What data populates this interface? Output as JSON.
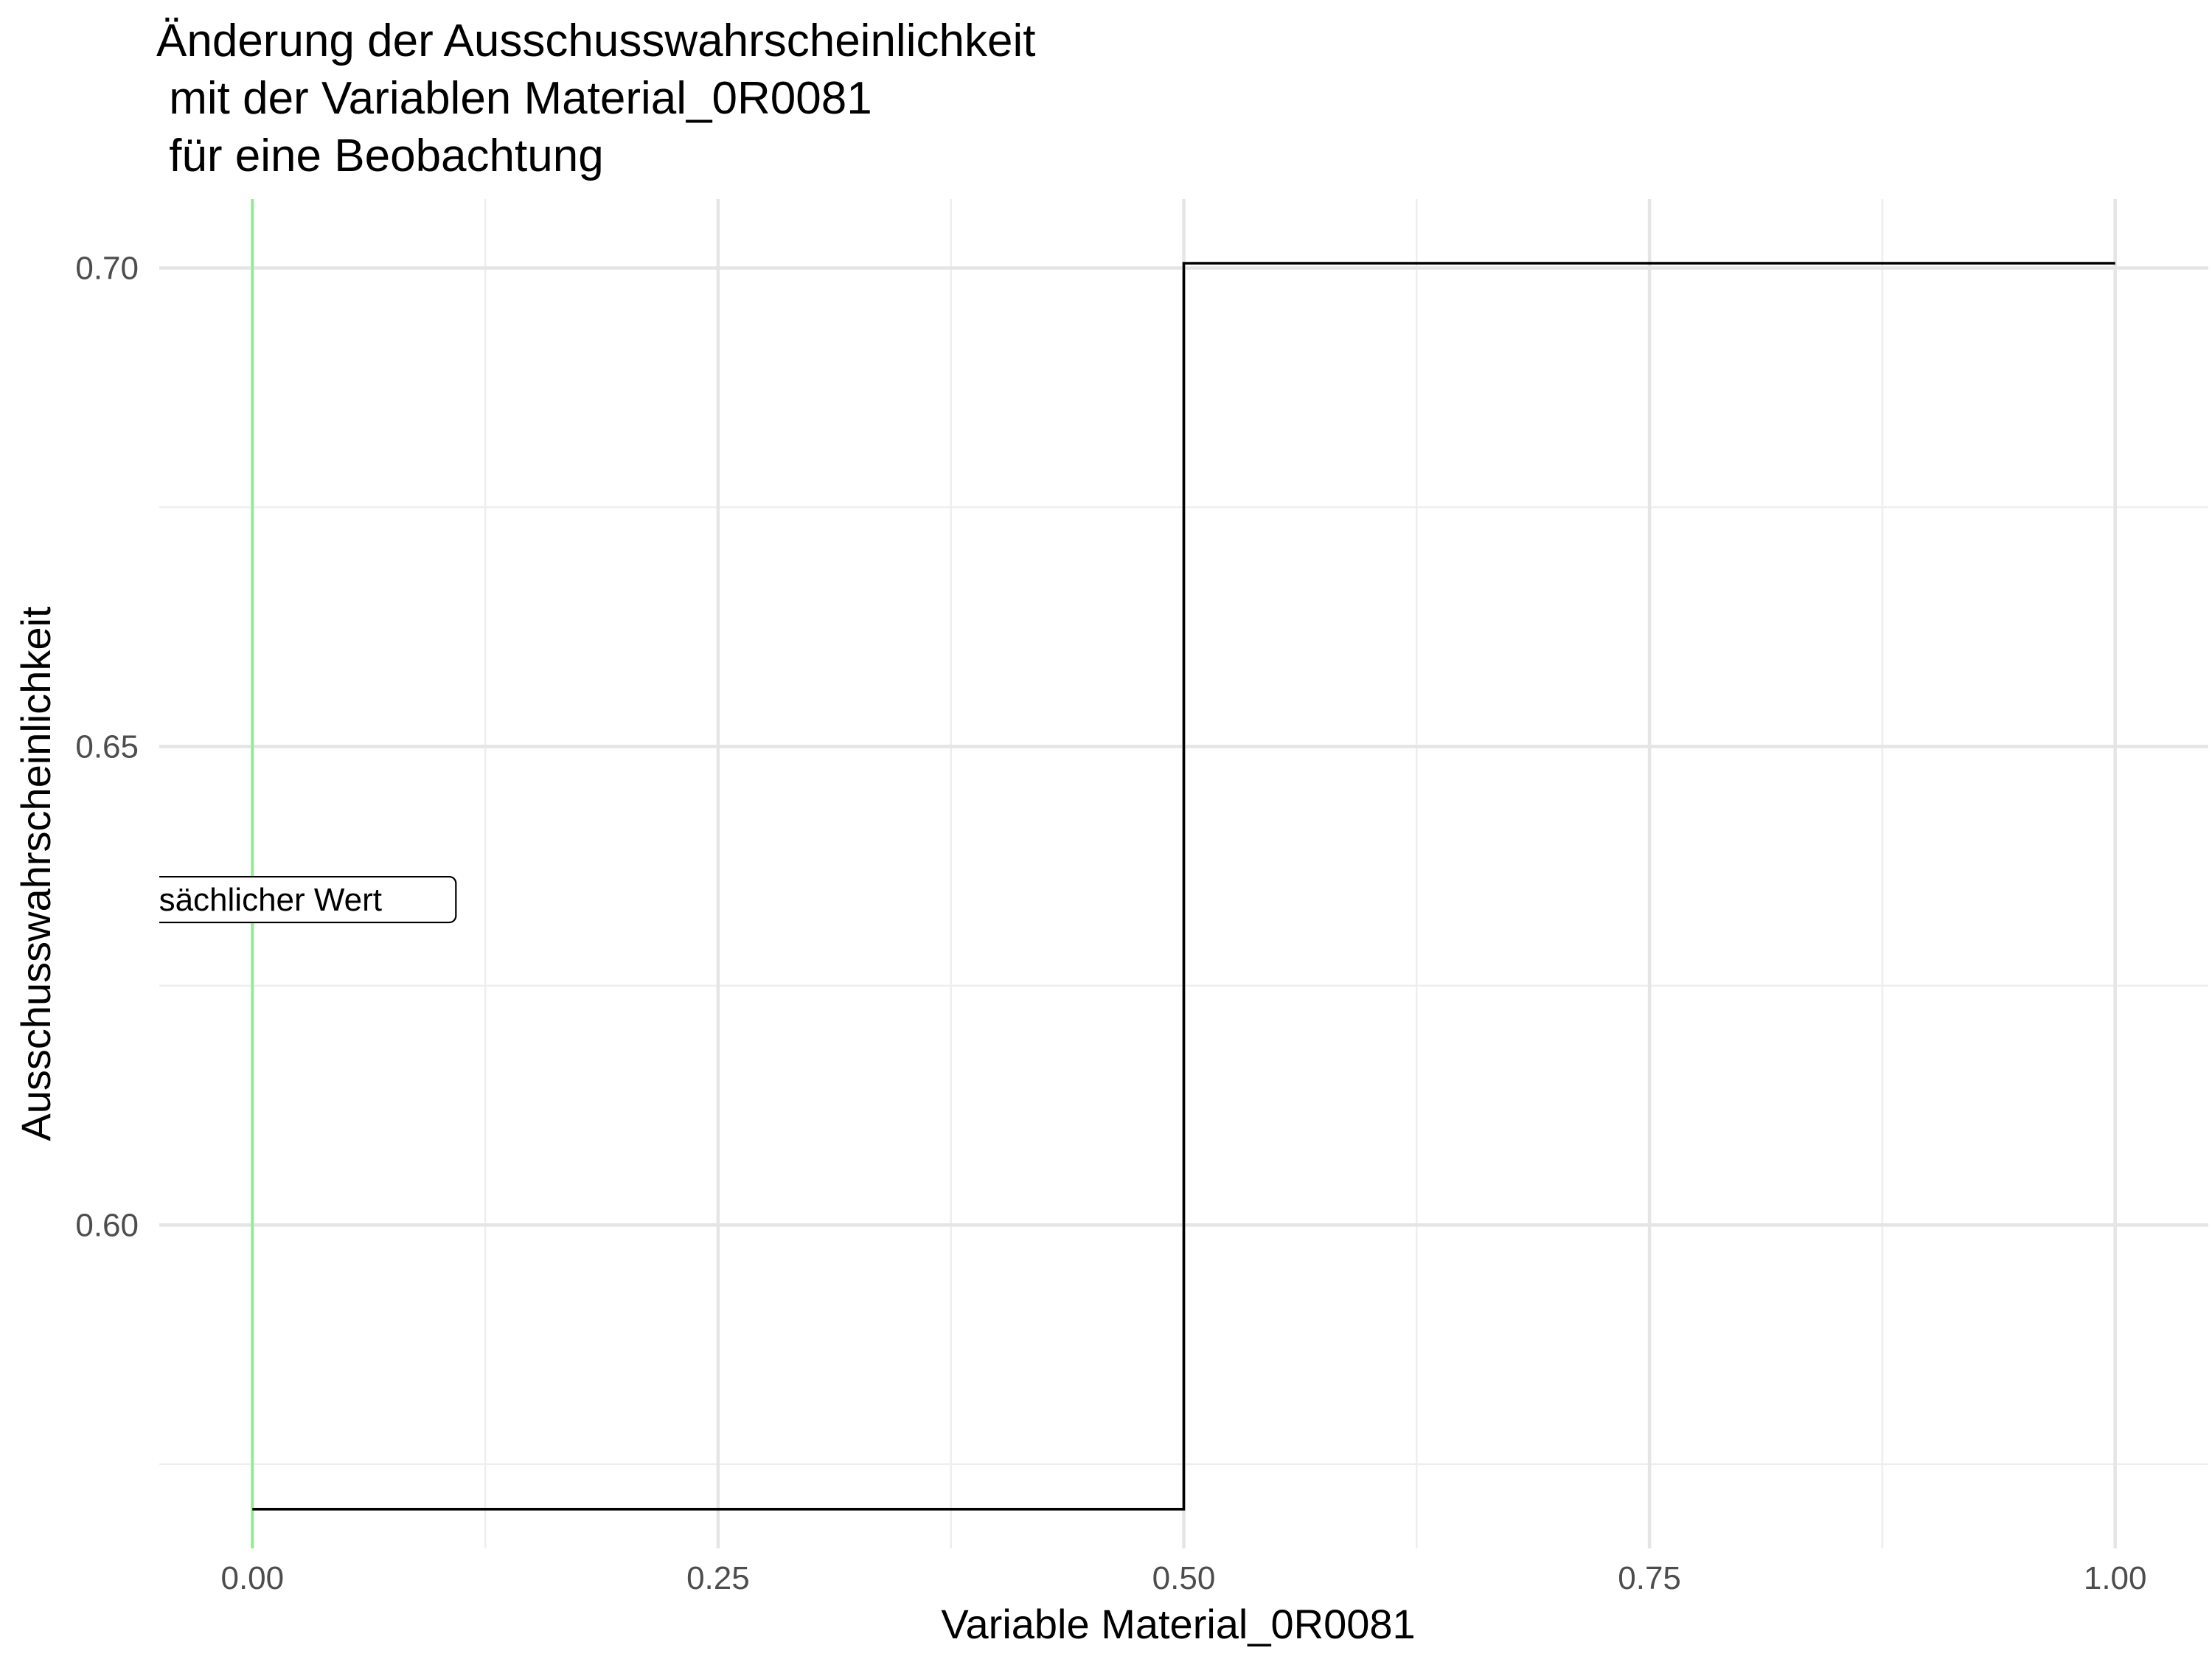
{
  "chart_data": {
    "type": "line",
    "title_lines": [
      "Änderung der Ausschusswahrscheinlichkeit",
      " mit der Variablen Material_0R0081",
      " für eine Beobachtung"
    ],
    "xlabel": "Variable Material_0R0081",
    "ylabel": "Ausschusswahrscheinlichkeit",
    "xlim": [
      -0.05,
      1.05
    ],
    "ylim": [
      0.5662,
      0.7072
    ],
    "x_ticks": [
      0.0,
      0.25,
      0.5,
      0.75,
      1.0
    ],
    "x_tick_labels": [
      "0.00",
      "0.25",
      "0.50",
      "0.75",
      "1.00"
    ],
    "y_ticks": [
      0.6,
      0.65,
      0.7
    ],
    "y_tick_labels": [
      "0.60",
      "0.65",
      "0.70"
    ],
    "grid": true,
    "series": [
      {
        "step": "hv",
        "color": "#000000",
        "points": [
          {
            "x": 0.0,
            "y": 0.5703
          },
          {
            "x": 0.5,
            "y": 0.5703
          },
          {
            "x": 0.5,
            "y": 0.7005
          },
          {
            "x": 1.0,
            "y": 0.7005
          }
        ]
      }
    ],
    "reference_line": {
      "x": 0.0,
      "color": "#90ee90",
      "label": "tatsächlicher Wert",
      "visible_label": "säachlicher Wert",
      "label_y": 0.634
    }
  }
}
